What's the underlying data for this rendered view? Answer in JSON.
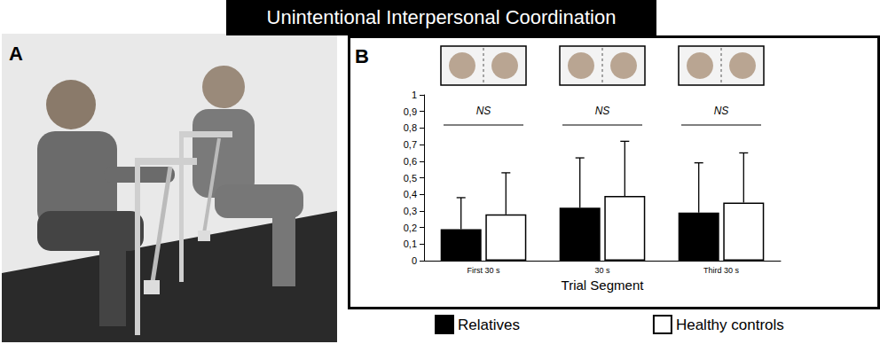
{
  "chart_data": {
    "type": "bar",
    "title": "Unintentional Interpersonal Coordination",
    "panel_labels": [
      "A",
      "B"
    ],
    "categories": [
      "First 30 s",
      "30 s",
      "Third 30 s"
    ],
    "series": [
      {
        "name": "Relatives",
        "color": "#000000",
        "values": [
          0.19,
          0.32,
          0.29
        ],
        "errors": [
          0.19,
          0.3,
          0.3
        ]
      },
      {
        "name": "Healthy controls",
        "color": "#ffffff",
        "values": [
          0.28,
          0.39,
          0.35
        ],
        "errors": [
          0.25,
          0.33,
          0.3
        ]
      }
    ],
    "annotations": [
      "NS",
      "NS",
      "NS"
    ],
    "xlabel": "Trial Segment",
    "ylim": [
      0,
      1
    ],
    "yticks": [
      0,
      {
        "value": 0.1,
        "label": "0,1"
      },
      {
        "value": 0.2,
        "label": "0,2"
      },
      {
        "value": 0.3,
        "label": "0,3"
      },
      {
        "value": 0.4,
        "label": "0,4"
      },
      {
        "value": 0.5,
        "label": "0,5"
      },
      {
        "value": 0.6,
        "label": "0,6"
      },
      {
        "value": 0.7,
        "label": "0,7"
      },
      {
        "value": 0.8,
        "label": "0,8"
      },
      {
        "value": 0.9,
        "label": "0,9"
      },
      1
    ],
    "grid": false,
    "legend": "bottom"
  }
}
